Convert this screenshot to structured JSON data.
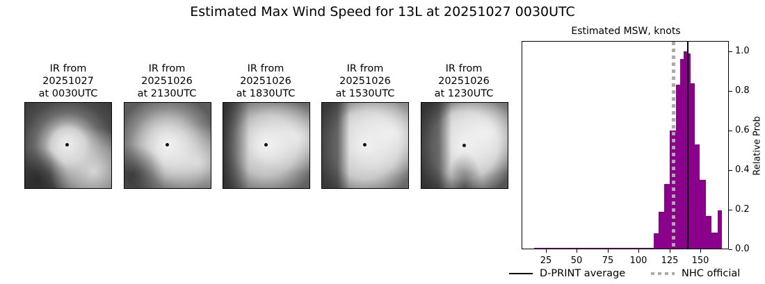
{
  "figure": {
    "suptitle": "Estimated Max Wind Speed for 13L at 20251027 0030UTC"
  },
  "ir_panels": [
    {
      "line1": "IR from",
      "line2": "20251027",
      "line3": "at 0030UTC"
    },
    {
      "line1": "IR from",
      "line2": "20251026",
      "line3": "at 2130UTC"
    },
    {
      "line1": "IR from",
      "line2": "20251026",
      "line3": "at 1830UTC"
    },
    {
      "line1": "IR from",
      "line2": "20251026",
      "line3": "at 1530UTC"
    },
    {
      "line1": "IR from",
      "line2": "20251026",
      "line3": "at 1230UTC"
    }
  ],
  "chart_data": {
    "type": "bar",
    "title": "Estimated MSW, knots",
    "xlabel": "",
    "ylabel": "Relative Prob",
    "xlim": [
      10,
      178
    ],
    "ylim": [
      0.0,
      1.05
    ],
    "xticks": [
      "25",
      "50",
      "75",
      "100",
      "125",
      "150"
    ],
    "yticks": [
      "0.0",
      "0.2",
      "0.4",
      "0.6",
      "0.8",
      "1.0"
    ],
    "bin_centers": [
      20,
      25,
      30,
      35,
      40,
      45,
      50,
      55,
      60,
      65,
      70,
      75,
      80,
      85,
      90,
      95,
      100,
      105,
      110,
      115,
      120,
      125,
      128,
      131,
      134,
      137,
      140,
      144,
      149,
      154,
      159,
      164,
      168
    ],
    "values": [
      0.0,
      0.0,
      0.0,
      0.0,
      0.0,
      0.0,
      0.0,
      0.0,
      0.0,
      0.0,
      0.0,
      0.0,
      0.0,
      0.0,
      0.0,
      0.0,
      0.0,
      0.0,
      0.0,
      0.08,
      0.19,
      0.33,
      0.6,
      0.83,
      0.96,
      1.0,
      0.99,
      0.84,
      0.53,
      0.35,
      0.17,
      0.085,
      0.195
    ],
    "series": [
      {
        "name": "D-PRINT distribution",
        "color": "#8b008b"
      }
    ],
    "reference_lines": [
      {
        "name": "D-PRINT average",
        "x": 141,
        "style": "solid",
        "color": "#000000"
      },
      {
        "name": "NHC official",
        "x": 130,
        "style": "dotted",
        "color": "#aaaaaa"
      }
    ],
    "legend": [
      "D-PRINT average",
      "NHC official"
    ],
    "legend_position": "bottom",
    "yaxis_side": "right",
    "grid": false
  }
}
